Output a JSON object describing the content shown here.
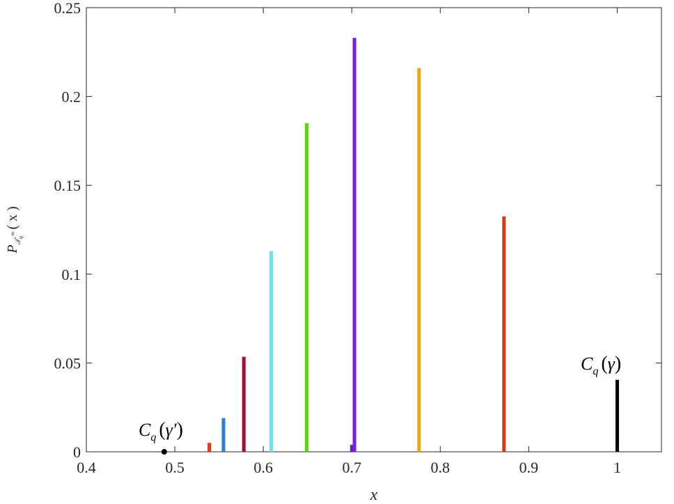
{
  "chart_data": {
    "type": "bar",
    "title": "",
    "xlabel": "x",
    "ylabel": {
      "base": "P",
      "sub": "𝒯",
      "subsub": "q",
      "sup": "∞",
      "arg": "( x )"
    },
    "xlim": [
      0.4,
      1.05
    ],
    "ylim": [
      0,
      0.25
    ],
    "xticks": [
      0.4,
      0.5,
      0.6,
      0.7,
      0.8,
      0.9,
      1
    ],
    "xtick_labels": [
      "0.4",
      "0.5",
      "0.6",
      "0.7",
      "0.8",
      "0.9",
      "1"
    ],
    "yticks": [
      0,
      0.05,
      0.1,
      0.15,
      0.2,
      0.25
    ],
    "ytick_labels": [
      "0",
      "0.05",
      "0.1",
      "0.15",
      "0.2",
      "0.25"
    ],
    "grid": false,
    "series": [
      {
        "x": [
          0.539,
          0.555,
          0.578,
          0.609,
          0.649,
          0.7,
          0.703,
          0.776,
          0.872,
          1.0
        ],
        "values": [
          0.005,
          0.019,
          0.0535,
          0.113,
          0.185,
          0.004,
          0.233,
          0.216,
          0.1325,
          0.0405
        ],
        "colors": [
          "#e03a10",
          "#2a7de1",
          "#9b1035",
          "#5ee8f5",
          "#5fd510",
          "#7a2ec8",
          "#7a1af0",
          "#eaa90e",
          "#dc3a0c",
          "#000000"
        ]
      }
    ],
    "point": {
      "x": 0.488,
      "y": 0,
      "color": "#000000"
    },
    "annotations": [
      {
        "text_base": "C",
        "text_sub": "q",
        "text_arg": "γ′",
        "x": 0.488
      },
      {
        "text_base": "C",
        "text_sub": "q",
        "text_arg": "γ",
        "x": 1.0
      }
    ]
  }
}
